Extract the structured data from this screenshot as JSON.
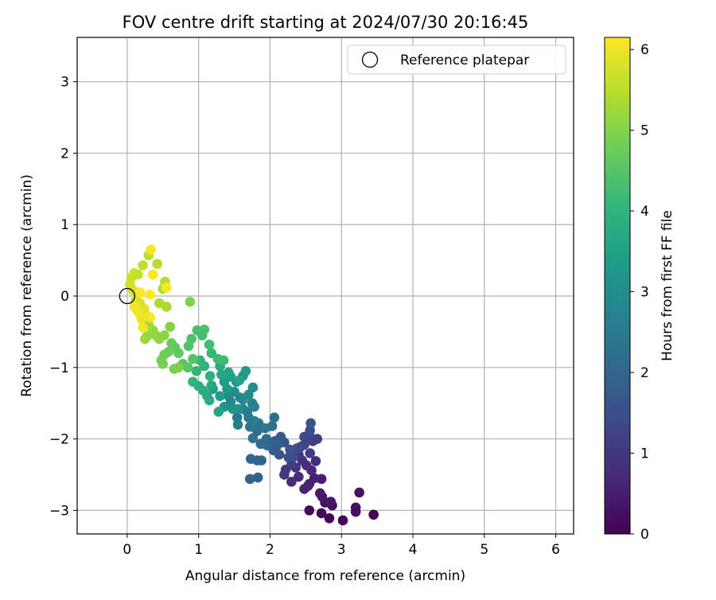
{
  "chart_data": {
    "type": "scatter",
    "title": "FOV centre drift starting at 2024/07/30 20:16:45",
    "xlabel": "Angular distance from reference (arcmin)",
    "ylabel": "Rotation from reference (arcmin)",
    "xlim": [
      -0.7,
      6.25
    ],
    "ylim": [
      -3.33,
      3.62
    ],
    "xticks": [
      0,
      1,
      2,
      3,
      4,
      5,
      6
    ],
    "yticks": [
      -3,
      -2,
      -1,
      0,
      1,
      2,
      3
    ],
    "xtick_labels": [
      "0",
      "1",
      "2",
      "3",
      "4",
      "5",
      "6"
    ],
    "ytick_labels": [
      "−3",
      "−2",
      "−1",
      "0",
      "1",
      "2",
      "3"
    ],
    "grid": true,
    "legend": {
      "position": "top-right",
      "entries": [
        "Reference platepar"
      ]
    },
    "reference_point": {
      "x": 0,
      "y": 0,
      "label": "Reference platepar",
      "marker": "open-circle"
    },
    "colorbar": {
      "label": "Hours from first FF file",
      "colormap": "viridis",
      "range": [
        0,
        6.15
      ],
      "ticks": [
        0,
        1,
        2,
        3,
        4,
        5,
        6
      ],
      "tick_labels": [
        "0",
        "1",
        "2",
        "3",
        "4",
        "5",
        "6"
      ],
      "colors": [
        "#440154",
        "#482878",
        "#3e4989",
        "#31688e",
        "#26828e",
        "#1f9e89",
        "#35b779",
        "#6ece58",
        "#b5de2b",
        "#fde725"
      ]
    },
    "series": [
      {
        "points": [
          [
            3.45,
            -3.06,
            0.02
          ],
          [
            3.02,
            -3.14,
            0.05
          ],
          [
            2.83,
            -3.11,
            0.08
          ],
          [
            2.72,
            -3.04,
            0.12
          ],
          [
            2.55,
            -3.0,
            0.15
          ],
          [
            2.87,
            -2.93,
            0.18
          ],
          [
            3.2,
            -3.02,
            0.22
          ],
          [
            3.2,
            -2.96,
            0.25
          ],
          [
            2.77,
            -2.89,
            0.28
          ],
          [
            3.25,
            -2.75,
            0.32
          ],
          [
            2.85,
            -2.88,
            0.36
          ],
          [
            2.73,
            -2.81,
            0.4
          ],
          [
            2.7,
            -2.76,
            0.44
          ],
          [
            2.72,
            -2.56,
            0.48
          ],
          [
            2.55,
            -2.63,
            0.52
          ],
          [
            2.62,
            -2.55,
            0.56
          ],
          [
            2.48,
            -2.7,
            0.6
          ],
          [
            2.53,
            -2.66,
            0.64
          ],
          [
            2.58,
            -2.44,
            0.68
          ],
          [
            2.4,
            -2.53,
            0.72
          ],
          [
            2.3,
            -2.6,
            0.76
          ],
          [
            2.64,
            -2.31,
            0.8
          ],
          [
            2.51,
            -2.37,
            0.84
          ],
          [
            2.45,
            -2.3,
            0.88
          ],
          [
            2.36,
            -2.4,
            0.92
          ],
          [
            2.4,
            -2.22,
            0.96
          ],
          [
            2.2,
            -2.5,
            1.0
          ],
          [
            2.22,
            -2.43,
            1.04
          ],
          [
            2.3,
            -2.36,
            1.08
          ],
          [
            2.56,
            -2.2,
            1.12
          ],
          [
            2.6,
            -2.03,
            1.16
          ],
          [
            2.66,
            -2.0,
            1.2
          ],
          [
            2.48,
            -2.08,
            1.24
          ],
          [
            2.56,
            -1.97,
            1.28
          ],
          [
            2.43,
            -2.11,
            1.32
          ],
          [
            2.48,
            -1.97,
            1.36
          ],
          [
            2.56,
            -1.88,
            1.4
          ],
          [
            2.33,
            -2.25,
            1.44
          ],
          [
            2.38,
            -2.13,
            1.48
          ],
          [
            2.26,
            -2.26,
            1.52
          ],
          [
            2.28,
            -2.15,
            1.56
          ],
          [
            2.13,
            -2.22,
            1.6
          ],
          [
            2.2,
            -2.05,
            1.64
          ],
          [
            2.57,
            -1.78,
            1.68
          ],
          [
            2.15,
            -1.97,
            1.72
          ],
          [
            2.1,
            -2.09,
            1.76
          ],
          [
            2.05,
            -2.16,
            1.8
          ],
          [
            2.07,
            -2.03,
            1.84
          ],
          [
            1.83,
            -2.54,
            1.88
          ],
          [
            1.72,
            -2.56,
            1.92
          ],
          [
            1.82,
            -2.3,
            1.96
          ],
          [
            1.88,
            -2.3,
            2.0
          ],
          [
            1.73,
            -2.28,
            2.04
          ],
          [
            1.96,
            -2.09,
            2.08
          ],
          [
            1.95,
            -2.0,
            2.12
          ],
          [
            1.87,
            -2.07,
            2.16
          ],
          [
            2.03,
            -1.82,
            2.2
          ],
          [
            2.06,
            -1.7,
            2.24
          ],
          [
            1.82,
            -1.89,
            2.28
          ],
          [
            1.76,
            -1.99,
            2.32
          ],
          [
            1.72,
            -1.83,
            2.36
          ],
          [
            1.84,
            -1.78,
            2.4
          ],
          [
            1.93,
            -1.85,
            2.44
          ],
          [
            1.7,
            -1.7,
            2.48
          ],
          [
            1.68,
            -1.62,
            2.52
          ],
          [
            1.54,
            -1.7,
            2.56
          ],
          [
            1.78,
            -1.75,
            2.6
          ],
          [
            1.55,
            -1.8,
            2.64
          ],
          [
            1.62,
            -1.58,
            2.68
          ],
          [
            1.78,
            -1.55,
            2.72
          ],
          [
            1.75,
            -1.5,
            2.76
          ],
          [
            1.58,
            -1.42,
            2.8
          ],
          [
            1.45,
            -1.48,
            2.84
          ],
          [
            1.42,
            -1.4,
            2.88
          ],
          [
            1.5,
            -1.34,
            2.92
          ],
          [
            1.62,
            -1.45,
            2.96
          ],
          [
            1.7,
            -1.38,
            3.0
          ],
          [
            1.76,
            -1.28,
            3.04
          ],
          [
            1.55,
            -1.58,
            3.08
          ],
          [
            1.48,
            -1.58,
            3.12
          ],
          [
            1.36,
            -1.55,
            3.16
          ],
          [
            1.53,
            -1.2,
            3.2
          ],
          [
            1.4,
            -1.3,
            3.24
          ],
          [
            1.62,
            -1.12,
            3.28
          ],
          [
            1.66,
            -1.05,
            3.32
          ],
          [
            1.3,
            -1.4,
            3.36
          ],
          [
            1.36,
            -1.2,
            3.4
          ],
          [
            1.2,
            -1.3,
            3.44
          ],
          [
            1.45,
            -1.13,
            3.48
          ],
          [
            1.42,
            -1.07,
            3.52
          ],
          [
            1.57,
            -1.18,
            3.56
          ],
          [
            1.28,
            -1.62,
            3.6
          ],
          [
            1.32,
            -1.1,
            3.64
          ],
          [
            1.18,
            -1.25,
            3.68
          ],
          [
            1.3,
            -0.98,
            3.72
          ],
          [
            1.15,
            -1.46,
            3.76
          ],
          [
            1.12,
            -1.4,
            3.8
          ],
          [
            1.06,
            -1.32,
            3.84
          ],
          [
            1.0,
            -1.26,
            3.88
          ],
          [
            1.16,
            -1.12,
            3.92
          ],
          [
            1.08,
            -0.98,
            3.96
          ],
          [
            0.92,
            -1.2,
            4.0
          ],
          [
            0.97,
            -1.05,
            4.04
          ],
          [
            1.02,
            -0.9,
            4.08
          ],
          [
            1.18,
            -0.8,
            4.12
          ],
          [
            1.35,
            -0.9,
            4.16
          ],
          [
            1.27,
            -0.88,
            4.2
          ],
          [
            1.15,
            -0.68,
            4.24
          ],
          [
            1.05,
            -0.55,
            4.28
          ],
          [
            0.98,
            -0.48,
            4.32
          ],
          [
            1.08,
            -0.47,
            4.36
          ],
          [
            0.9,
            -0.6,
            4.4
          ],
          [
            0.86,
            -0.7,
            4.44
          ],
          [
            0.92,
            -0.88,
            4.48
          ],
          [
            0.85,
            -1.0,
            4.52
          ],
          [
            0.78,
            -0.95,
            4.56
          ],
          [
            0.72,
            -0.8,
            4.6
          ],
          [
            0.67,
            -0.72,
            4.64
          ],
          [
            0.62,
            -0.66,
            4.68
          ],
          [
            0.58,
            -0.78,
            4.72
          ],
          [
            0.52,
            -0.82,
            4.76
          ],
          [
            0.48,
            -0.9,
            4.8
          ],
          [
            0.5,
            -0.95,
            4.84
          ],
          [
            0.66,
            -1.02,
            4.88
          ],
          [
            0.72,
            -1.0,
            4.92
          ],
          [
            0.88,
            -0.08,
            4.96
          ],
          [
            0.6,
            -0.43,
            5.0
          ],
          [
            0.52,
            -0.55,
            5.04
          ],
          [
            0.45,
            -0.6,
            5.08
          ],
          [
            0.4,
            -0.55,
            5.12
          ],
          [
            0.36,
            -0.48,
            5.16
          ],
          [
            0.28,
            -0.56,
            5.2
          ],
          [
            0.25,
            -0.6,
            5.24
          ],
          [
            0.3,
            -0.4,
            5.28
          ],
          [
            0.55,
            -0.15,
            5.32
          ],
          [
            0.45,
            -0.1,
            5.36
          ],
          [
            0.5,
            0.1,
            5.4
          ],
          [
            0.53,
            0.2,
            5.44
          ],
          [
            0.42,
            0.45,
            5.48
          ],
          [
            0.3,
            0.57,
            5.52
          ],
          [
            0.22,
            0.43,
            5.56
          ],
          [
            0.15,
            0.3,
            5.6
          ],
          [
            0.1,
            0.32,
            5.64
          ],
          [
            0.06,
            0.26,
            5.68
          ],
          [
            0.04,
            0.16,
            5.72
          ],
          [
            0.08,
            0.08,
            5.76
          ],
          [
            0.12,
            -0.05,
            5.8
          ],
          [
            0.18,
            -0.1,
            5.84
          ],
          [
            0.24,
            -0.18,
            5.88
          ],
          [
            0.28,
            -0.28,
            5.92
          ],
          [
            0.2,
            -0.32,
            5.96
          ],
          [
            0.15,
            -0.22,
            6.0
          ],
          [
            0.1,
            -0.15,
            6.03
          ],
          [
            0.22,
            -0.44,
            6.06
          ],
          [
            0.32,
            -0.3,
            6.08
          ],
          [
            0.33,
            0.65,
            6.1
          ],
          [
            0.36,
            0.3,
            6.12
          ],
          [
            0.55,
            0.12,
            6.13
          ],
          [
            0.32,
            0.02,
            6.14
          ],
          [
            0.18,
            0.05,
            6.15
          ]
        ]
      }
    ]
  }
}
